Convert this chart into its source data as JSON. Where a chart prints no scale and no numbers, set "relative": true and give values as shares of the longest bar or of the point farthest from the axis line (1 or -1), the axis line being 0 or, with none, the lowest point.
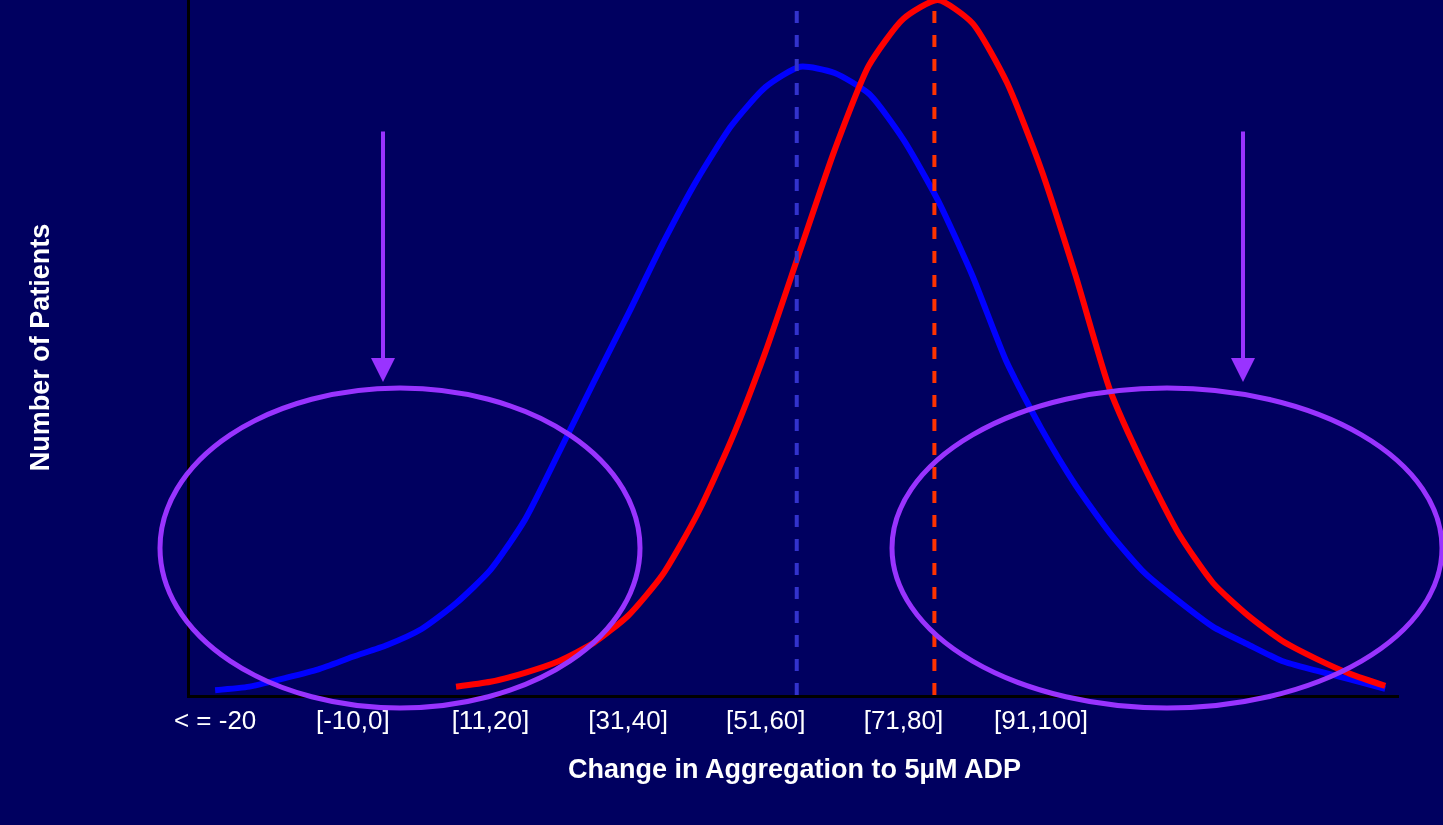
{
  "chart_data": {
    "type": "line",
    "relative": true,
    "xlabel": "Change in Aggregation to 5µM ADP",
    "ylabel": "Number of Patients",
    "categories": [
      "< = -20",
      null,
      null,
      null,
      "[-10,0]",
      null,
      null,
      null,
      "[11,20]",
      null,
      null,
      null,
      "[31,40]",
      null,
      null,
      null,
      "[51,60]",
      null,
      null,
      null,
      "[71,80]",
      null,
      null,
      null,
      "[91,100]",
      null,
      null,
      null,
      null,
      null,
      null,
      null,
      null,
      null,
      null
    ],
    "marker": "none",
    "line_style": "solid",
    "series": [
      {
        "color": "#0000ff",
        "values": [
          0.007,
          0.012,
          0.024,
          0.037,
          0.055,
          0.072,
          0.095,
          0.132,
          0.18,
          0.252,
          0.35,
          0.45,
          0.548,
          0.649,
          0.741,
          0.819,
          0.875,
          0.904,
          0.895,
          0.865,
          0.799,
          0.712,
          0.604,
          0.479,
          0.384,
          0.302,
          0.233,
          0.176,
          0.135,
          0.098,
          0.073,
          0.049,
          0.035,
          0.022,
          0.009
        ]
      },
      {
        "color": "#ff0000",
        "values": [
          null,
          null,
          null,
          null,
          null,
          null,
          null,
          0.012,
          0.019,
          0.032,
          0.049,
          0.075,
          0.114,
          0.173,
          0.259,
          0.367,
          0.495,
          0.64,
          0.784,
          0.906,
          0.973,
          1.0,
          0.967,
          0.882,
          0.757,
          0.604,
          0.439,
          0.328,
          0.232,
          0.161,
          0.115,
          0.078,
          0.052,
          0.03,
          0.013
        ]
      }
    ]
  }
}
